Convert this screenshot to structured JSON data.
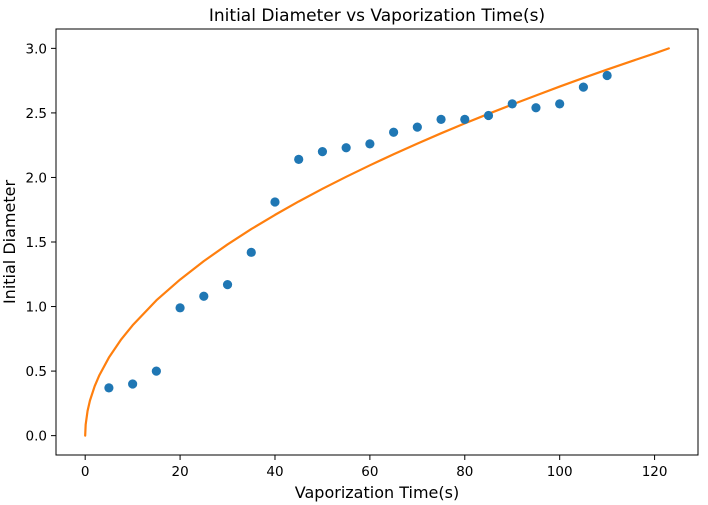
{
  "chart_data": {
    "type": "scatter",
    "title": "Initial Diameter vs Vaporization Time(s)",
    "xlabel": "Vaporization Time(s)",
    "ylabel": "Initial Diameter",
    "xlim": [
      -6.15,
      129.15
    ],
    "ylim": [
      -0.15,
      3.15
    ],
    "xticks": [
      0,
      20,
      40,
      60,
      80,
      100,
      120
    ],
    "yticks": [
      0.0,
      0.5,
      1.0,
      1.5,
      2.0,
      2.5,
      3.0
    ],
    "grid": false,
    "series": [
      {
        "kind": "scatter",
        "color": "#1f77b4",
        "x": [
          5,
          10,
          15,
          20,
          25,
          30,
          35,
          40,
          45,
          50,
          55,
          60,
          65,
          70,
          75,
          80,
          85,
          90,
          95,
          100,
          105,
          110
        ],
        "y": [
          0.37,
          0.4,
          0.5,
          0.99,
          1.08,
          1.17,
          1.42,
          1.81,
          2.14,
          2.2,
          2.23,
          2.26,
          2.35,
          2.39,
          2.45,
          2.45,
          2.48,
          2.57,
          2.54,
          2.57,
          2.7,
          2.79
        ]
      },
      {
        "kind": "line",
        "color": "#ff7f0e",
        "x": [
          0,
          0.1,
          0.5,
          1,
          2,
          3,
          5,
          7.5,
          10,
          15,
          20,
          25,
          30,
          35,
          40,
          45,
          50,
          55,
          60,
          65,
          70,
          75,
          80,
          85,
          90,
          95,
          100,
          105,
          110,
          115,
          120,
          123
        ],
        "y": [
          0,
          0.085,
          0.191,
          0.271,
          0.383,
          0.469,
          0.605,
          0.741,
          0.855,
          1.048,
          1.209,
          1.352,
          1.481,
          1.6,
          1.71,
          1.814,
          1.912,
          2.005,
          2.094,
          2.18,
          2.262,
          2.342,
          2.419,
          2.493,
          2.565,
          2.635,
          2.704,
          2.771,
          2.836,
          2.899,
          2.961,
          3.0
        ]
      }
    ]
  }
}
